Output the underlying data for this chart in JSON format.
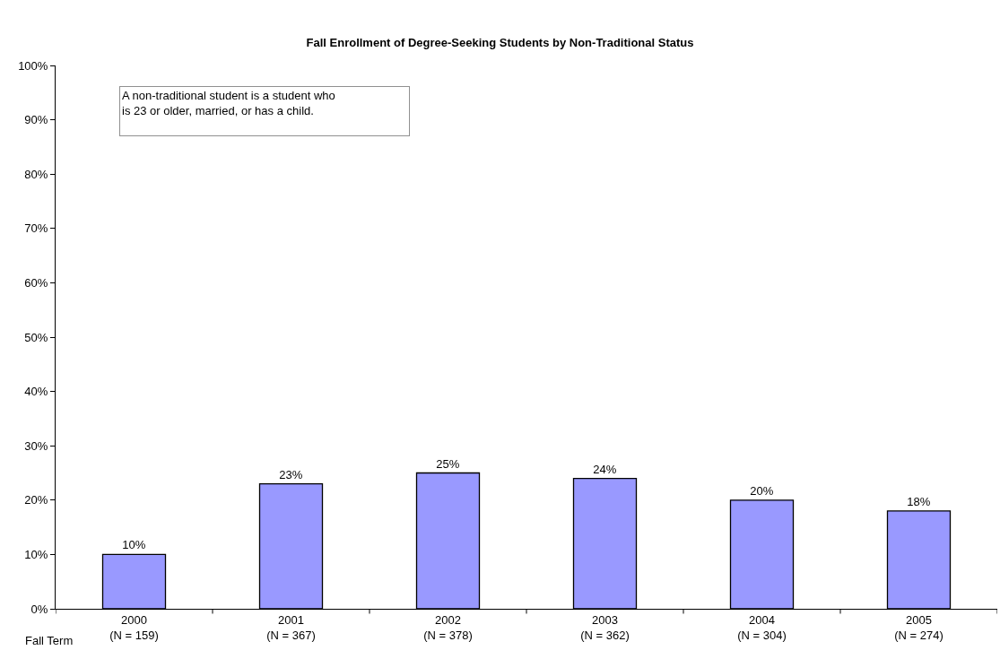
{
  "chart_data": {
    "type": "bar",
    "title": "Fall Enrollment of Degree-Seeking Students by Non-Traditional Status",
    "xlabel": "Fall Term",
    "categories": [
      "2000\n(N = 159)",
      "2001\n(N = 367)",
      "2002\n(N = 378)",
      "2003\n(N = 362)",
      "2004\n(N = 304)",
      "2005\n(N = 274)"
    ],
    "values": [
      10,
      23,
      25,
      24,
      20,
      18
    ],
    "value_labels": [
      "10%",
      "23%",
      "25%",
      "24%",
      "20%",
      "18%"
    ],
    "color": "#9999ff",
    "ylim": [
      0,
      100
    ],
    "yticks": [
      {
        "value": 0,
        "label": "0%"
      },
      {
        "value": 10,
        "label": "10%"
      },
      {
        "value": 20,
        "label": "20%"
      },
      {
        "value": 30,
        "label": "30%"
      },
      {
        "value": 40,
        "label": "40%"
      },
      {
        "value": 50,
        "label": "50%"
      },
      {
        "value": 60,
        "label": "60%"
      },
      {
        "value": 70,
        "label": "70%"
      },
      {
        "value": 80,
        "label": "80%"
      },
      {
        "value": 90,
        "label": "90%"
      },
      {
        "value": 100,
        "label": "100%"
      }
    ],
    "annotations": [
      "A non-traditional student is a student who\nis 23 or older, married, or has a child."
    ]
  }
}
